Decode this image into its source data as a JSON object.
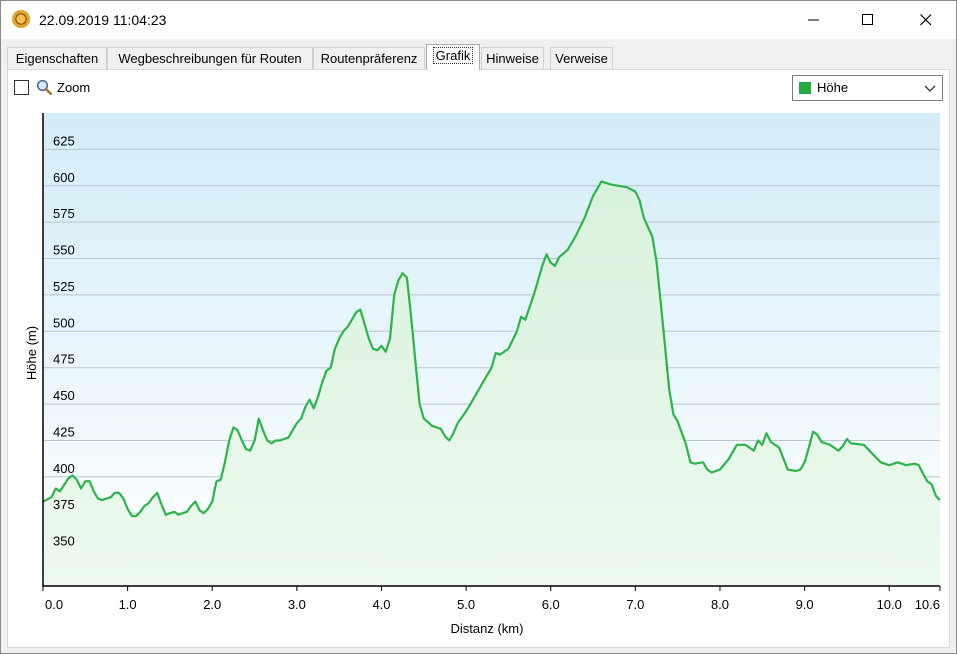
{
  "window": {
    "title": "22.09.2019 11:04:23",
    "minimize": "—",
    "maximize": "☐",
    "close": "✕"
  },
  "tabs": [
    {
      "label": "Eigenschaften"
    },
    {
      "label": "Wegbeschreibungen für Routen"
    },
    {
      "label": "Routenpräferenz"
    },
    {
      "label": "Grafik"
    },
    {
      "label": "Hinweise"
    },
    {
      "label": "Verweise"
    }
  ],
  "toolbar": {
    "zoom_label": "Zoom",
    "zoom_checked": false,
    "series_selected": "Höhe",
    "series_color": "#22aa44"
  },
  "chart_data": {
    "type": "area",
    "xlabel": "Distanz  (km)",
    "ylabel": "Höhe (m)",
    "xlim": [
      0,
      10.6
    ],
    "ylim": [
      325,
      650
    ],
    "x_ticks": [
      {
        "v": 0,
        "label": "0.0"
      },
      {
        "v": 1,
        "label": "1.0"
      },
      {
        "v": 2,
        "label": "2.0"
      },
      {
        "v": 3,
        "label": "3.0"
      },
      {
        "v": 4,
        "label": "4.0"
      },
      {
        "v": 5,
        "label": "5.0"
      },
      {
        "v": 6,
        "label": "6.0"
      },
      {
        "v": 7,
        "label": "7.0"
      },
      {
        "v": 8,
        "label": "8.0"
      },
      {
        "v": 9,
        "label": "9.0"
      },
      {
        "v": 10,
        "label": "10.0"
      },
      {
        "v": 10.6,
        "label": "10.6"
      }
    ],
    "y_ticks": [
      350,
      375,
      400,
      425,
      450,
      475,
      500,
      525,
      550,
      575,
      600,
      625
    ],
    "grid": true,
    "series": [
      {
        "color": "#2db34a",
        "points": [
          [
            0.0,
            383
          ],
          [
            0.1,
            386
          ],
          [
            0.15,
            392
          ],
          [
            0.2,
            390
          ],
          [
            0.3,
            399
          ],
          [
            0.35,
            401
          ],
          [
            0.4,
            398
          ],
          [
            0.45,
            392
          ],
          [
            0.5,
            397
          ],
          [
            0.55,
            397
          ],
          [
            0.6,
            390
          ],
          [
            0.65,
            385
          ],
          [
            0.7,
            384
          ],
          [
            0.8,
            386
          ],
          [
            0.85,
            389
          ],
          [
            0.9,
            389
          ],
          [
            0.95,
            385
          ],
          [
            1.0,
            378
          ],
          [
            1.05,
            373
          ],
          [
            1.1,
            373
          ],
          [
            1.15,
            376
          ],
          [
            1.2,
            380
          ],
          [
            1.25,
            382
          ],
          [
            1.3,
            386
          ],
          [
            1.35,
            389
          ],
          [
            1.4,
            381
          ],
          [
            1.45,
            374
          ],
          [
            1.5,
            375
          ],
          [
            1.55,
            376
          ],
          [
            1.6,
            374
          ],
          [
            1.65,
            375
          ],
          [
            1.7,
            376
          ],
          [
            1.75,
            380
          ],
          [
            1.8,
            383
          ],
          [
            1.85,
            377
          ],
          [
            1.9,
            375
          ],
          [
            1.95,
            378
          ],
          [
            2.0,
            383
          ],
          [
            2.05,
            397
          ],
          [
            2.1,
            398
          ],
          [
            2.15,
            410
          ],
          [
            2.2,
            425
          ],
          [
            2.25,
            434
          ],
          [
            2.3,
            432
          ],
          [
            2.35,
            425
          ],
          [
            2.4,
            419
          ],
          [
            2.45,
            418
          ],
          [
            2.5,
            425
          ],
          [
            2.55,
            440
          ],
          [
            2.6,
            432
          ],
          [
            2.65,
            425
          ],
          [
            2.7,
            423
          ],
          [
            2.75,
            425
          ],
          [
            2.8,
            425
          ],
          [
            2.9,
            427
          ],
          [
            3.0,
            437
          ],
          [
            3.05,
            440
          ],
          [
            3.1,
            448
          ],
          [
            3.15,
            453
          ],
          [
            3.2,
            447
          ],
          [
            3.25,
            455
          ],
          [
            3.3,
            465
          ],
          [
            3.35,
            473
          ],
          [
            3.4,
            475
          ],
          [
            3.45,
            488
          ],
          [
            3.5,
            495
          ],
          [
            3.55,
            500
          ],
          [
            3.6,
            503
          ],
          [
            3.65,
            508
          ],
          [
            3.7,
            513
          ],
          [
            3.75,
            515
          ],
          [
            3.8,
            505
          ],
          [
            3.85,
            495
          ],
          [
            3.9,
            488
          ],
          [
            3.95,
            487
          ],
          [
            4.0,
            490
          ],
          [
            4.05,
            486
          ],
          [
            4.1,
            495
          ],
          [
            4.15,
            525
          ],
          [
            4.2,
            535
          ],
          [
            4.25,
            540
          ],
          [
            4.3,
            537
          ],
          [
            4.35,
            510
          ],
          [
            4.4,
            480
          ],
          [
            4.45,
            450
          ],
          [
            4.5,
            440
          ],
          [
            4.6,
            435
          ],
          [
            4.7,
            433
          ],
          [
            4.75,
            428
          ],
          [
            4.8,
            425
          ],
          [
            4.85,
            430
          ],
          [
            4.9,
            437
          ],
          [
            5.0,
            445
          ],
          [
            5.1,
            455
          ],
          [
            5.2,
            465
          ],
          [
            5.3,
            475
          ],
          [
            5.35,
            485
          ],
          [
            5.4,
            484
          ],
          [
            5.5,
            488
          ],
          [
            5.6,
            500
          ],
          [
            5.65,
            510
          ],
          [
            5.7,
            508
          ],
          [
            5.8,
            525
          ],
          [
            5.9,
            545
          ],
          [
            5.95,
            553
          ],
          [
            6.0,
            547
          ],
          [
            6.05,
            545
          ],
          [
            6.1,
            551
          ],
          [
            6.2,
            556
          ],
          [
            6.3,
            566
          ],
          [
            6.4,
            578
          ],
          [
            6.5,
            593
          ],
          [
            6.6,
            603
          ],
          [
            6.7,
            601
          ],
          [
            6.8,
            600
          ],
          [
            6.9,
            599
          ],
          [
            7.0,
            596
          ],
          [
            7.05,
            590
          ],
          [
            7.1,
            578
          ],
          [
            7.2,
            565
          ],
          [
            7.25,
            548
          ],
          [
            7.3,
            520
          ],
          [
            7.35,
            490
          ],
          [
            7.4,
            460
          ],
          [
            7.45,
            443
          ],
          [
            7.5,
            438
          ],
          [
            7.55,
            430
          ],
          [
            7.6,
            422
          ],
          [
            7.65,
            410
          ],
          [
            7.7,
            409
          ],
          [
            7.8,
            410
          ],
          [
            7.85,
            405
          ],
          [
            7.9,
            403
          ],
          [
            8.0,
            405
          ],
          [
            8.1,
            412
          ],
          [
            8.2,
            422
          ],
          [
            8.3,
            422
          ],
          [
            8.4,
            418
          ],
          [
            8.45,
            425
          ],
          [
            8.5,
            422
          ],
          [
            8.55,
            430
          ],
          [
            8.6,
            424
          ],
          [
            8.7,
            420
          ],
          [
            8.8,
            405
          ],
          [
            8.9,
            404
          ],
          [
            8.95,
            405
          ],
          [
            9.0,
            410
          ],
          [
            9.05,
            420
          ],
          [
            9.1,
            431
          ],
          [
            9.15,
            429
          ],
          [
            9.2,
            424
          ],
          [
            9.3,
            422
          ],
          [
            9.4,
            418
          ],
          [
            9.45,
            421
          ],
          [
            9.5,
            426
          ],
          [
            9.55,
            423
          ],
          [
            9.7,
            422
          ],
          [
            9.8,
            416
          ],
          [
            9.9,
            410
          ],
          [
            10.0,
            408
          ],
          [
            10.1,
            410
          ],
          [
            10.2,
            408
          ],
          [
            10.3,
            409
          ],
          [
            10.35,
            408
          ],
          [
            10.4,
            402
          ],
          [
            10.45,
            397
          ],
          [
            10.5,
            395
          ],
          [
            10.55,
            387
          ],
          [
            10.6,
            384
          ]
        ]
      }
    ]
  }
}
